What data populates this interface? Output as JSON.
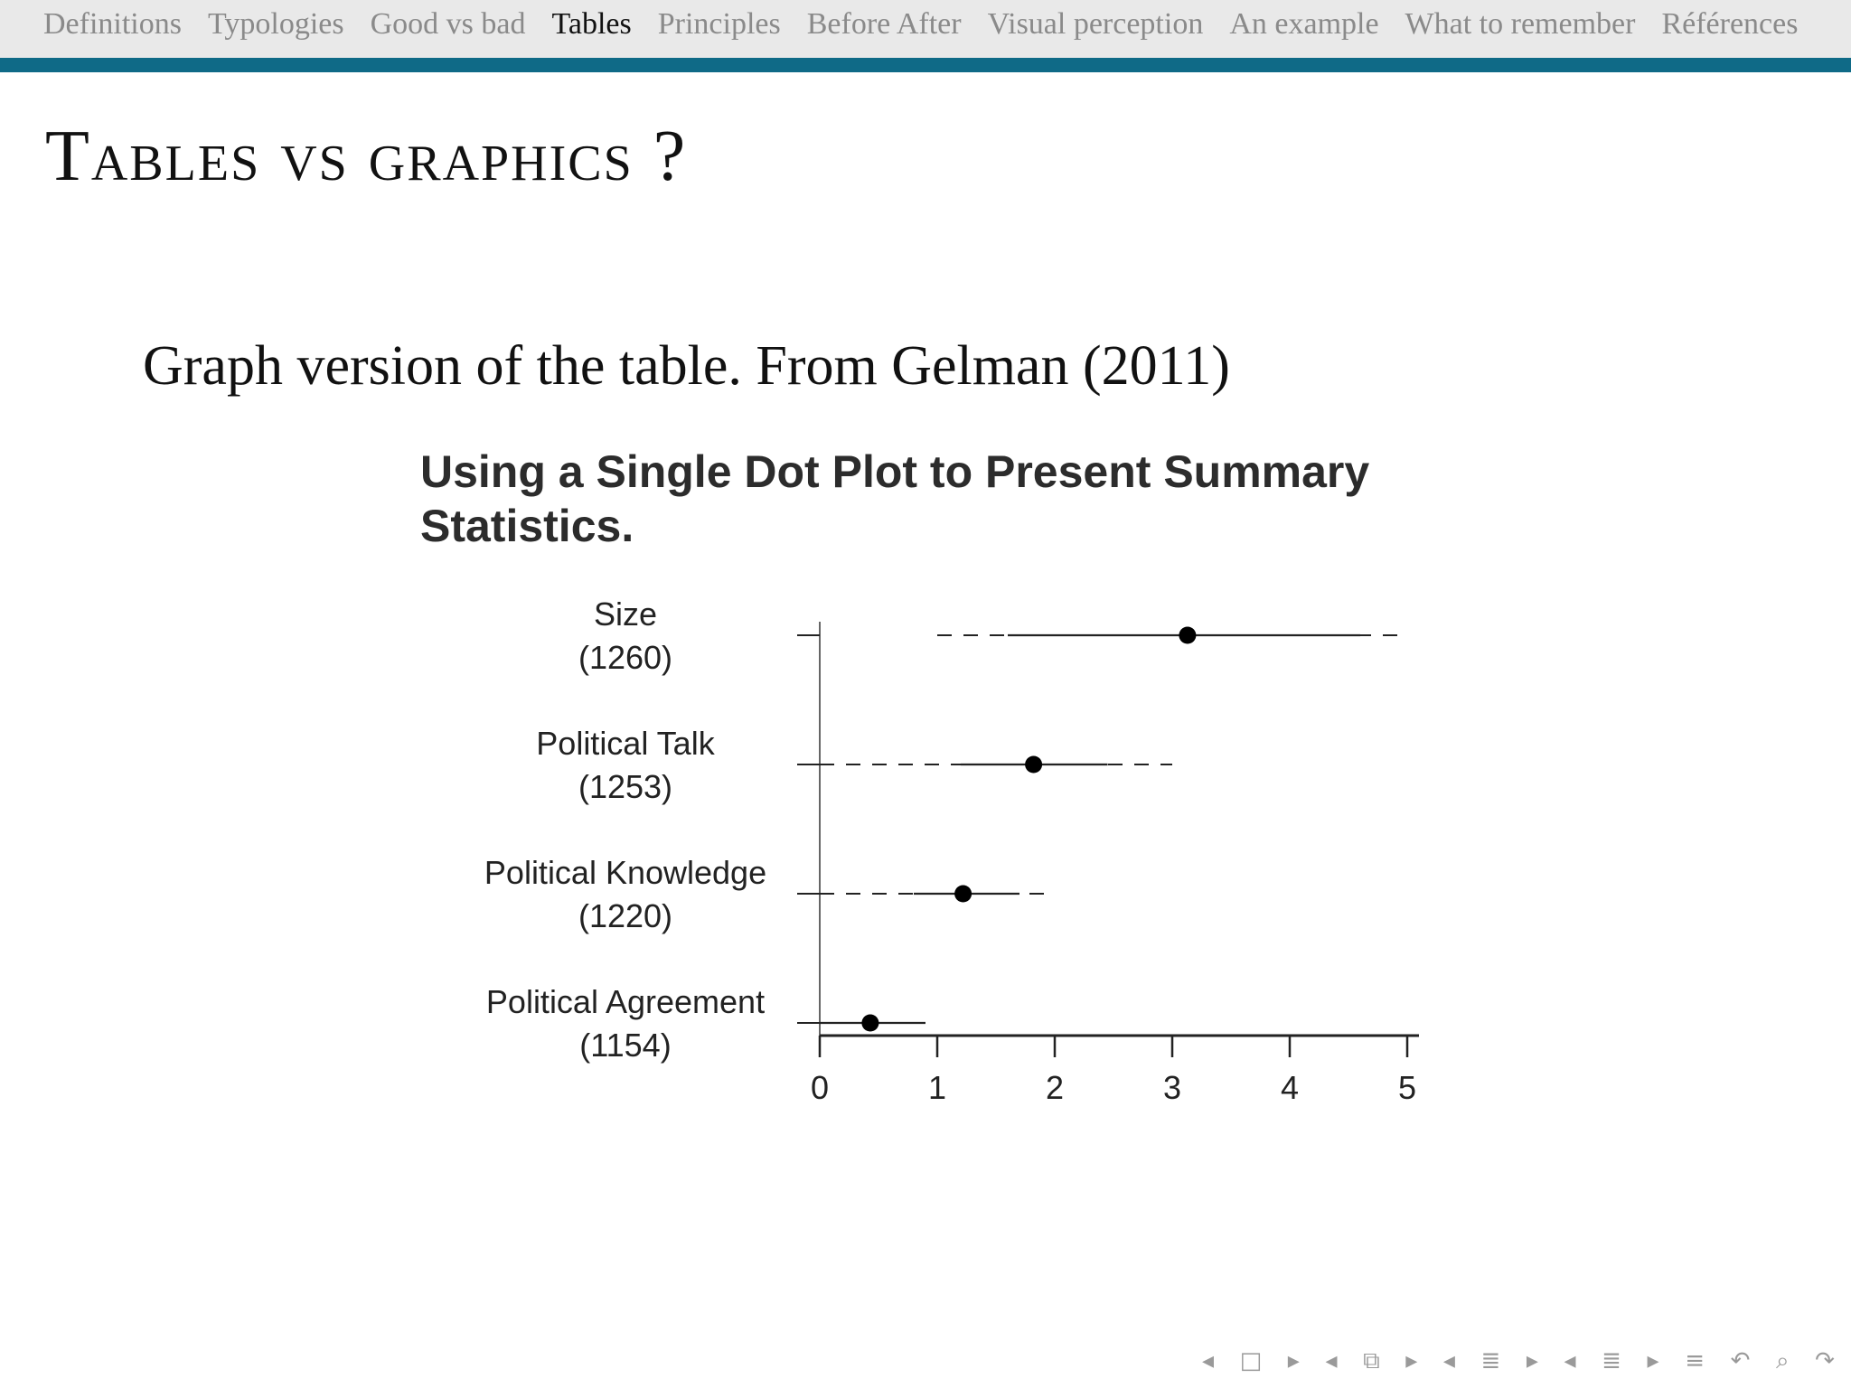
{
  "nav": {
    "items": [
      "Definitions",
      "Typologies",
      "Good vs bad",
      "Tables",
      "Principles",
      "Before After",
      "Visual perception",
      "An example",
      "What to remember",
      "Références"
    ],
    "active_index": 3,
    "accent_color": "#0f6a87"
  },
  "frame": {
    "title": "Tables vs graphics ?",
    "caption": "Graph version of the table. From Gelman (2011)"
  },
  "chart_data": {
    "type": "dot-plot",
    "title_lines": [
      "Using a Single Dot Plot to Present Summary",
      "Statistics."
    ],
    "categories": [
      {
        "label": "Size",
        "n": "(1260)",
        "mean": 3.13,
        "inner": [
          1.6,
          4.6
        ],
        "outer": [
          1.0,
          5.0
        ]
      },
      {
        "label": "Political Talk",
        "n": "(1253)",
        "mean": 1.82,
        "inner": [
          1.2,
          2.45
        ],
        "outer": [
          0.0,
          3.0
        ]
      },
      {
        "label": "Political Knowledge",
        "n": "(1220)",
        "mean": 1.22,
        "inner": [
          0.8,
          1.7
        ],
        "outer": [
          0.0,
          1.95
        ]
      },
      {
        "label": "Political Agreement",
        "n": "(1154)",
        "mean": 0.43,
        "inner": [
          0.0,
          0.9
        ],
        "outer": [
          0.0,
          0.9
        ]
      }
    ],
    "xlim": [
      0,
      5
    ],
    "xticks": [
      "0",
      "1",
      "2",
      "3",
      "4",
      "5"
    ]
  },
  "footer": {
    "icons": [
      "arrow-left-icon",
      "frame-icon",
      "arrow-right-icon",
      "arrow-left-icon",
      "subsection-icon",
      "arrow-right-icon",
      "arrow-left-icon",
      "section-icon",
      "arrow-right-icon",
      "arrow-left-icon",
      "section-icon",
      "arrow-right-icon",
      "outline-icon",
      "back-icon",
      "search-icon",
      "forward-icon"
    ]
  }
}
